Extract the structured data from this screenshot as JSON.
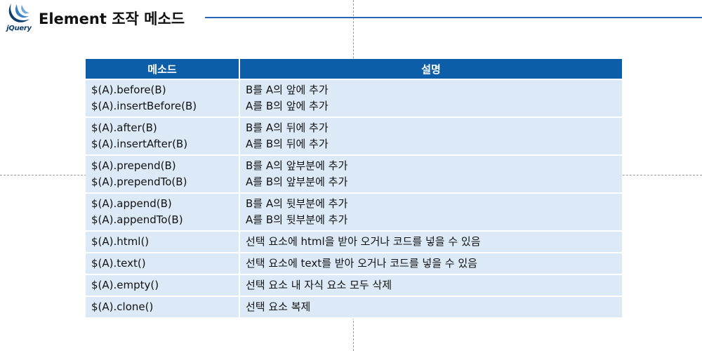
{
  "header": {
    "logo_text": "jQuery",
    "title": "Element 조작 메소드"
  },
  "table": {
    "columns": [
      "메소드",
      "설명"
    ],
    "rows": [
      {
        "method": [
          "$(A).before(B)",
          "$(A).insertBefore(B)"
        ],
        "desc": [
          "B를 A의 앞에 추가",
          "A를 B의 앞에 추가"
        ]
      },
      {
        "method": [
          "$(A).after(B)",
          "$(A).insertAfter(B)"
        ],
        "desc": [
          "B를 A의 뒤에 추가",
          "A를 B의 뒤에 추가"
        ]
      },
      {
        "method": [
          "$(A).prepend(B)",
          "$(A).prependTo(B)"
        ],
        "desc": [
          "B를 A의 앞부분에 추가",
          "A를 B의 앞부분에 추가"
        ]
      },
      {
        "method": [
          "$(A).append(B)",
          "$(A).appendTo(B)"
        ],
        "desc": [
          "B를 A의 뒷부분에 추가",
          "A를 B의 뒷부분에 추가"
        ]
      },
      {
        "method": [
          "$(A).html()"
        ],
        "desc": [
          "선택 요소에 html을 받아 오거나 코드를 넣을 수 있음"
        ]
      },
      {
        "method": [
          "$(A).text()"
        ],
        "desc": [
          "선택 요소에 text를 받아 오거나 코드를 넣을 수 있음"
        ]
      },
      {
        "method": [
          "$(A).empty()"
        ],
        "desc": [
          "선택 요소 내 자식 요소 모두 삭제"
        ]
      },
      {
        "method": [
          "$(A).clone()"
        ],
        "desc": [
          "선택 요소 복제"
        ]
      }
    ]
  },
  "colors": {
    "header_bg": "#0d5ea8",
    "row_bg": "#dce9f6",
    "title_rule": "#2a67b3",
    "logo": "#0c3d6b"
  },
  "icons": {
    "logo": "jquery-logo-icon"
  }
}
